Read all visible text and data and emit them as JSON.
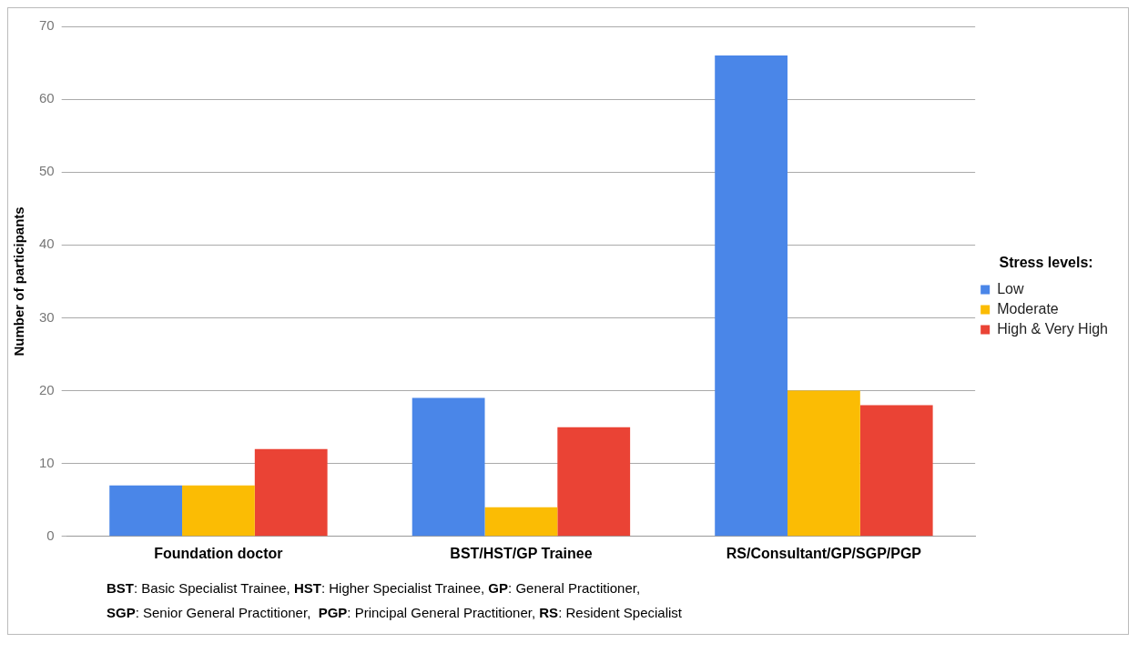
{
  "chart_data": {
    "type": "bar",
    "ylabel": "Number of participants",
    "legend_title": "Stress levels:",
    "categories": [
      "Foundation doctor",
      "BST/HST/GP Trainee",
      "RS/Consultant/GP/SGP/PGP"
    ],
    "series": [
      {
        "name": "Low",
        "color": "#4a86e8",
        "values": [
          7,
          19,
          66
        ]
      },
      {
        "name": "Moderate",
        "color": "#fbbc04",
        "values": [
          7,
          4,
          20
        ]
      },
      {
        "name": "High & Very High",
        "color": "#ea4335",
        "values": [
          12,
          15,
          18
        ]
      }
    ],
    "ylim": [
      0,
      70
    ],
    "yticks": [
      0,
      10,
      20,
      30,
      40,
      50,
      60,
      70
    ],
    "grid": "y",
    "legend": "right",
    "annotations": [
      "BST: Basic Specialist Trainee, HST: Higher Specialist Trainee, GP: General Practitioner,",
      "SGP: Senior General Practitioner,  PGP: Principal General Practitioner, RS: Resident Specialist"
    ]
  }
}
